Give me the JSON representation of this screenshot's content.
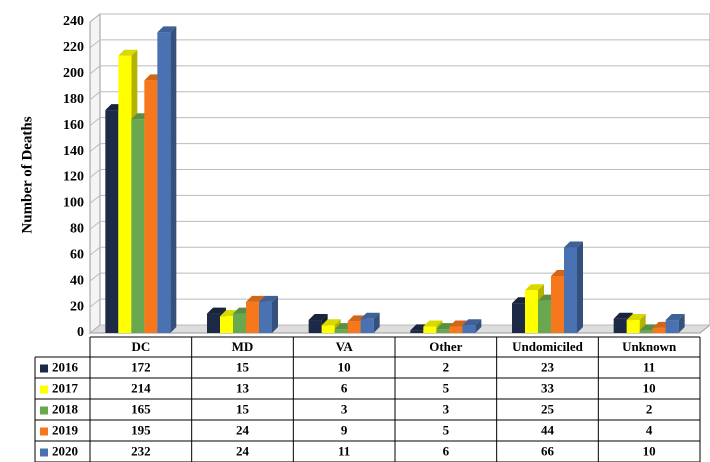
{
  "chart_data": {
    "type": "bar",
    "y_label": "Number of Deaths",
    "categories": [
      "DC",
      "MD",
      "VA",
      "Other",
      "Undomiciled",
      "Unknown"
    ],
    "series": [
      {
        "name": "2016",
        "color": "#1c2a47",
        "values": [
          172,
          15,
          10,
          2,
          23,
          11
        ]
      },
      {
        "name": "2017",
        "color": "#ffff00",
        "values": [
          214,
          13,
          6,
          5,
          33,
          10
        ]
      },
      {
        "name": "2018",
        "color": "#6aa84f",
        "values": [
          165,
          15,
          3,
          3,
          25,
          2
        ]
      },
      {
        "name": "2019",
        "color": "#f7781c",
        "values": [
          195,
          24,
          9,
          5,
          44,
          4
        ]
      },
      {
        "name": "2020",
        "color": "#4a72b2",
        "values": [
          232,
          24,
          11,
          6,
          66,
          10
        ]
      }
    ],
    "ylim": [
      0,
      240
    ],
    "yticks": [
      0,
      20,
      40,
      60,
      80,
      100,
      120,
      140,
      160,
      180,
      200,
      220,
      240
    ],
    "grid": true
  }
}
